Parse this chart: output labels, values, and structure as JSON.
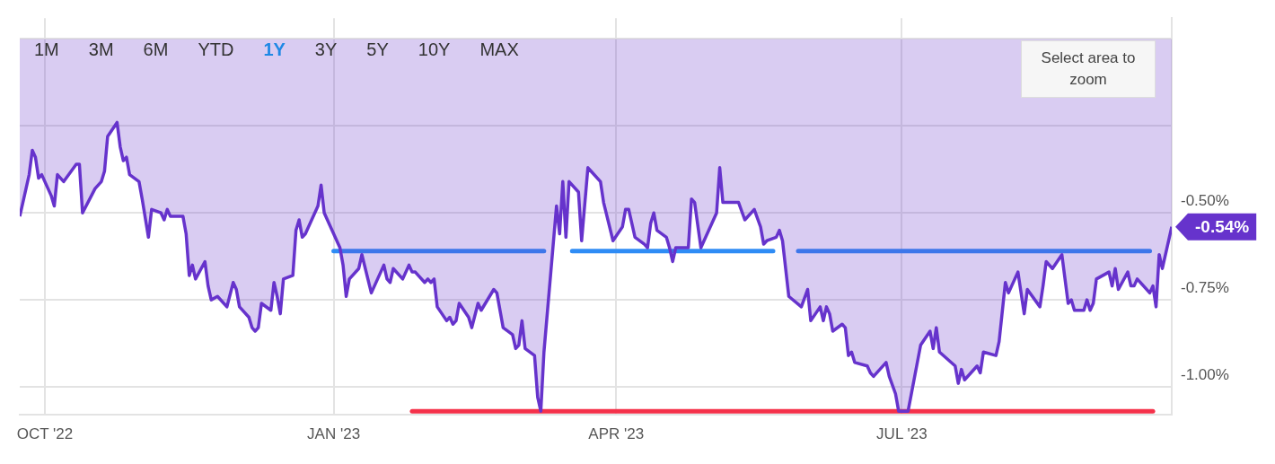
{
  "chart_data": {
    "type": "area",
    "annotations": [
      "1M",
      "3M",
      "6M",
      "YTD",
      "1Y",
      "3Y",
      "5Y",
      "10Y",
      "MAX",
      "Select area to zoom",
      {
        "text": "-0.54%",
        "x": "2023-09-25",
        "y": -0.54
      }
    ],
    "x": [
      "2022-09-23",
      "2022-09-26",
      "2022-09-27",
      "2022-09-28",
      "2022-09-29",
      "2022-09-30",
      "2022-10-02",
      "2022-10-03",
      "2022-10-04",
      "2022-10-05",
      "2022-10-07",
      "2022-10-11",
      "2022-10-12",
      "2022-10-13",
      "2022-10-17",
      "2022-10-19",
      "2022-10-20",
      "2022-10-21",
      "2022-10-24",
      "2022-10-25",
      "2022-10-26",
      "2022-10-27",
      "2022-10-28",
      "2022-10-31",
      "2022-11-01",
      "2022-11-03",
      "2022-11-04",
      "2022-11-07",
      "2022-11-08",
      "2022-11-09",
      "2022-11-10",
      "2022-11-14",
      "2022-11-15",
      "2022-11-16",
      "2022-11-17",
      "2022-11-18",
      "2022-11-21",
      "2022-11-22",
      "2022-11-23",
      "2022-11-25",
      "2022-11-28",
      "2022-11-30",
      "2022-12-01",
      "2022-12-02",
      "2022-12-05",
      "2022-12-06",
      "2022-12-07",
      "2022-12-08",
      "2022-12-09",
      "2022-12-12",
      "2022-12-13",
      "2022-12-14",
      "2022-12-15",
      "2022-12-16",
      "2022-12-19",
      "2022-12-20",
      "2022-12-21",
      "2022-12-22",
      "2022-12-23",
      "2022-12-27",
      "2022-12-28",
      "2022-12-29",
      "2023-01-03",
      "2023-01-04",
      "2023-01-05",
      "2023-01-06",
      "2023-01-09",
      "2023-01-10",
      "2023-01-13",
      "2023-01-17",
      "2023-01-18",
      "2023-01-19",
      "2023-01-20",
      "2023-01-23",
      "2023-01-25",
      "2023-01-26",
      "2023-01-27",
      "2023-01-30",
      "2023-01-31",
      "2023-02-01",
      "2023-02-02",
      "2023-02-03",
      "2023-02-06",
      "2023-02-07",
      "2023-02-08",
      "2023-02-09",
      "2023-02-10",
      "2023-02-13",
      "2023-02-14",
      "2023-02-16",
      "2023-02-17",
      "2023-02-21",
      "2023-02-22",
      "2023-02-24",
      "2023-02-27",
      "2023-02-28",
      "2023-03-01",
      "2023-03-02",
      "2023-03-03",
      "2023-03-06",
      "2023-03-07",
      "2023-03-08",
      "2023-03-09",
      "2023-03-13",
      "2023-03-14",
      "2023-03-15",
      "2023-03-16",
      "2023-03-17",
      "2023-03-20",
      "2023-03-21",
      "2023-03-23",
      "2023-03-24",
      "2023-03-27",
      "2023-03-28",
      "2023-03-31",
      "2023-04-03",
      "2023-04-04",
      "2023-04-05",
      "2023-04-07",
      "2023-04-10",
      "2023-04-11",
      "2023-04-12",
      "2023-04-13",
      "2023-04-14",
      "2023-04-17",
      "2023-04-18",
      "2023-04-19",
      "2023-04-20",
      "2023-04-24",
      "2023-04-25",
      "2023-04-26",
      "2023-04-28",
      "2023-05-02",
      "2023-05-03",
      "2023-05-04",
      "2023-05-05",
      "2023-05-09",
      "2023-05-10",
      "2023-05-12",
      "2023-05-15",
      "2023-05-17",
      "2023-05-18",
      "2023-05-19",
      "2023-05-22",
      "2023-05-23",
      "2023-05-24",
      "2023-05-26",
      "2023-05-30",
      "2023-06-01",
      "2023-06-02",
      "2023-06-05",
      "2023-06-06",
      "2023-06-07",
      "2023-06-08",
      "2023-06-09",
      "2023-06-12",
      "2023-06-13",
      "2023-06-14",
      "2023-06-15",
      "2023-06-16",
      "2023-06-20",
      "2023-06-21",
      "2023-06-22",
      "2023-06-26",
      "2023-06-27",
      "2023-06-29",
      "2023-06-30",
      "2023-07-03",
      "2023-07-07",
      "2023-07-10",
      "2023-07-11",
      "2023-07-12",
      "2023-07-13",
      "2023-07-18",
      "2023-07-19",
      "2023-07-20",
      "2023-07-21",
      "2023-07-25",
      "2023-07-26",
      "2023-07-27",
      "2023-07-31",
      "2023-08-01",
      "2023-08-03",
      "2023-08-04",
      "2023-08-07",
      "2023-08-09",
      "2023-08-10",
      "2023-08-14",
      "2023-08-15",
      "2023-08-16",
      "2023-08-18",
      "2023-08-21",
      "2023-08-23",
      "2023-08-24",
      "2023-08-25",
      "2023-08-28",
      "2023-08-29",
      "2023-08-30",
      "2023-08-31",
      "2023-09-01",
      "2023-09-05",
      "2023-09-06",
      "2023-09-07",
      "2023-09-08",
      "2023-09-11",
      "2023-09-12",
      "2023-09-13",
      "2023-09-14",
      "2023-09-18",
      "2023-09-19",
      "2023-09-20",
      "2023-09-21",
      "2023-09-22",
      "2023-09-25"
    ],
    "series": [
      {
        "color": "#6633cc",
        "values": [
          -0.51,
          -0.39,
          -0.32,
          -0.34,
          -0.4,
          -0.39,
          -0.43,
          -0.45,
          -0.48,
          -0.39,
          -0.41,
          -0.36,
          -0.36,
          -0.5,
          -0.43,
          -0.41,
          -0.38,
          -0.28,
          -0.24,
          -0.31,
          -0.35,
          -0.34,
          -0.39,
          -0.41,
          -0.46,
          -0.57,
          -0.49,
          -0.5,
          -0.52,
          -0.49,
          -0.51,
          -0.51,
          -0.56,
          -0.68,
          -0.65,
          -0.69,
          -0.64,
          -0.71,
          -0.75,
          -0.74,
          -0.77,
          -0.7,
          -0.72,
          -0.77,
          -0.8,
          -0.83,
          -0.84,
          -0.83,
          -0.76,
          -0.78,
          -0.7,
          -0.74,
          -0.79,
          -0.69,
          -0.68,
          -0.55,
          -0.52,
          -0.57,
          -0.56,
          -0.48,
          -0.42,
          -0.5,
          -0.6,
          -0.65,
          -0.74,
          -0.69,
          -0.66,
          -0.62,
          -0.73,
          -0.65,
          -0.69,
          -0.7,
          -0.66,
          -0.69,
          -0.65,
          -0.67,
          -0.67,
          -0.7,
          -0.69,
          -0.7,
          -0.69,
          -0.77,
          -0.81,
          -0.8,
          -0.82,
          -0.81,
          -0.76,
          -0.8,
          -0.83,
          -0.76,
          -0.78,
          -0.72,
          -0.73,
          -0.83,
          -0.85,
          -0.89,
          -0.88,
          -0.81,
          -0.89,
          -0.91,
          -1.03,
          -1.07,
          -0.9,
          -0.48,
          -0.56,
          -0.41,
          -0.57,
          -0.41,
          -0.44,
          -0.58,
          -0.37,
          -0.38,
          -0.41,
          -0.47,
          -0.58,
          -0.54,
          -0.49,
          -0.49,
          -0.57,
          -0.59,
          -0.6,
          -0.53,
          -0.5,
          -0.55,
          -0.57,
          -0.6,
          -0.64,
          -0.6,
          -0.6,
          -0.46,
          -0.47,
          -0.6,
          -0.52,
          -0.5,
          -0.37,
          -0.47,
          -0.47,
          -0.47,
          -0.52,
          -0.49,
          -0.54,
          -0.59,
          -0.58,
          -0.57,
          -0.55,
          -0.58,
          -0.74,
          -0.77,
          -0.72,
          -0.81,
          -0.77,
          -0.81,
          -0.77,
          -0.79,
          -0.84,
          -0.82,
          -0.83,
          -0.91,
          -0.9,
          -0.93,
          -0.94,
          -0.96,
          -0.97,
          -0.93,
          -0.97,
          -1.02,
          -1.07,
          -1.07,
          -0.88,
          -0.84,
          -0.89,
          -0.83,
          -0.9,
          -0.94,
          -0.99,
          -0.95,
          -0.98,
          -0.94,
          -0.96,
          -0.9,
          -0.91,
          -0.87,
          -0.7,
          -0.73,
          -0.67,
          -0.79,
          -0.72,
          -0.77,
          -0.71,
          -0.64,
          -0.66,
          -0.62,
          -0.76,
          -0.75,
          -0.78,
          -0.78,
          -0.75,
          -0.78,
          -0.76,
          -0.69,
          -0.67,
          -0.71,
          -0.66,
          -0.72,
          -0.67,
          -0.71,
          -0.71,
          -0.69,
          -0.73,
          -0.71,
          -0.77,
          -0.62,
          -0.66,
          -0.54
        ]
      },
      {
        "type": "line",
        "color": "#2f8cf5",
        "x": [
          "2023-01-01",
          "2023-03-09"
        ],
        "values": [
          -0.61,
          -0.61
        ]
      },
      {
        "type": "line",
        "color": "#2f8cf5",
        "x": [
          "2023-03-18",
          "2023-05-21"
        ],
        "values": [
          -0.61,
          -0.61
        ]
      },
      {
        "type": "line",
        "color": "#2f8cf5",
        "x": [
          "2023-05-29",
          "2023-09-18"
        ],
        "values": [
          -0.61,
          -0.61
        ]
      },
      {
        "type": "line",
        "color": "#f5314a",
        "x": [
          "2023-01-26",
          "2023-09-19"
        ],
        "values": [
          -1.07,
          -1.07
        ]
      }
    ],
    "xlim": [
      "2022-09-23",
      "2023-09-25"
    ],
    "xticks": [
      {
        "value": "2022-10-01",
        "label": "OCT '22"
      },
      {
        "value": "2023-01-01",
        "label": "JAN '23"
      },
      {
        "value": "2023-04-01",
        "label": "APR '23"
      },
      {
        "value": "2023-07-01",
        "label": "JUL '23"
      }
    ],
    "ylim": [
      -1.08,
      0.06
    ],
    "yticks": [
      {
        "value": -1.0,
        "label": "-1.00%"
      },
      {
        "value": -0.75,
        "label": "-0.75%"
      },
      {
        "value": -0.5,
        "label": "-0.50%"
      },
      {
        "value": -0.25,
        "label": null
      },
      {
        "value": 0,
        "label": null
      }
    ],
    "grid": true,
    "legend": false,
    "marker": "none",
    "line_style": "solid"
  }
}
